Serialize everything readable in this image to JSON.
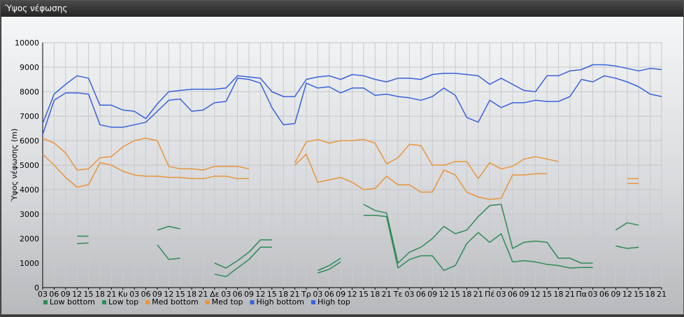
{
  "window": {
    "title": "Ύψος νέφωσης"
  },
  "chart_data": {
    "type": "line",
    "title": "",
    "ylabel": "Ύψος νέφωσης (m)",
    "ylim": [
      0,
      10000
    ],
    "yticks": [
      0,
      1000,
      2000,
      3000,
      4000,
      5000,
      6000,
      7000,
      8000,
      9000,
      10000
    ],
    "grid": true,
    "legend": "bottom-left",
    "x": [
      "03",
      "06",
      "09",
      "12",
      "15",
      "18",
      "21",
      "Κυ",
      "03",
      "06",
      "09",
      "12",
      "15",
      "18",
      "21",
      "Δε",
      "03",
      "06",
      "09",
      "12",
      "15",
      "18",
      "21",
      "Τρ",
      "03",
      "06",
      "09",
      "12",
      "15",
      "18",
      "21",
      "Τε",
      "03",
      "06",
      "09",
      "12",
      "15",
      "18",
      "21",
      "Πέ",
      "03",
      "06",
      "09",
      "12",
      "15",
      "18",
      "21",
      "Πα",
      "03",
      "06",
      "09",
      "12",
      "15",
      "18",
      "21"
    ],
    "series": [
      {
        "name": "Low bottom",
        "color": "#2e8b57",
        "values": [
          null,
          null,
          null,
          1800,
          1820,
          null,
          null,
          null,
          null,
          null,
          1750,
          1150,
          1200,
          null,
          null,
          550,
          450,
          800,
          1150,
          1650,
          1650,
          null,
          null,
          null,
          600,
          750,
          1050,
          null,
          2950,
          2950,
          2900,
          800,
          1150,
          1300,
          1300,
          700,
          900,
          1800,
          2250,
          1850,
          2200,
          1050,
          1100,
          1050,
          950,
          900,
          800,
          820,
          820,
          null,
          1700,
          1600,
          1650,
          null,
          null
        ]
      },
      {
        "name": "Low top",
        "color": "#2e8b57",
        "values": [
          null,
          null,
          null,
          2100,
          2100,
          null,
          null,
          null,
          null,
          null,
          2350,
          2500,
          2400,
          null,
          null,
          1000,
          800,
          1100,
          1450,
          1950,
          1950,
          null,
          null,
          null,
          700,
          900,
          1200,
          null,
          3400,
          3150,
          3050,
          1000,
          1450,
          1650,
          2000,
          2500,
          2200,
          2350,
          2900,
          3350,
          3400,
          1600,
          1850,
          1900,
          1850,
          1200,
          1200,
          1000,
          1000,
          null,
          2350,
          2650,
          2550,
          null,
          null
        ]
      },
      {
        "name": "Med bottom",
        "color": "#e8953c",
        "values": [
          5450,
          5000,
          4500,
          4100,
          4200,
          5100,
          5000,
          4750,
          4600,
          4550,
          4550,
          4500,
          4500,
          4450,
          4450,
          4550,
          4550,
          4450,
          4450,
          null,
          null,
          null,
          5000,
          5450,
          4300,
          4400,
          4500,
          4300,
          4000,
          4050,
          4550,
          4200,
          4200,
          3900,
          3900,
          4800,
          4600,
          3900,
          3700,
          3600,
          3650,
          4600,
          4600,
          4650,
          4650,
          null,
          null,
          null,
          null,
          null,
          null,
          4250,
          4250,
          null,
          null
        ]
      },
      {
        "name": "Med top",
        "color": "#e8953c",
        "values": [
          6100,
          5900,
          5500,
          4800,
          4850,
          5300,
          5350,
          5750,
          6000,
          6100,
          6000,
          4950,
          4850,
          4850,
          4800,
          4950,
          4950,
          4950,
          4850,
          null,
          null,
          null,
          5100,
          5950,
          6050,
          5900,
          6000,
          6000,
          6050,
          5900,
          5050,
          5300,
          5850,
          5800,
          5000,
          5000,
          5150,
          5150,
          4450,
          5100,
          4850,
          4950,
          5250,
          5350,
          5250,
          5150,
          null,
          null,
          null,
          null,
          null,
          4450,
          4450,
          null,
          null
        ]
      },
      {
        "name": "High bottom",
        "color": "#3a62d8",
        "values": [
          6250,
          7650,
          7950,
          7950,
          7900,
          6650,
          6550,
          6550,
          6650,
          6750,
          7200,
          7650,
          7700,
          7200,
          7250,
          7550,
          7600,
          8550,
          8500,
          8350,
          7350,
          6650,
          6700,
          8350,
          8150,
          8200,
          7950,
          8150,
          8150,
          7850,
          7900,
          7800,
          7750,
          7650,
          7800,
          8150,
          7850,
          6950,
          6750,
          7650,
          7350,
          7550,
          7550,
          7650,
          7600,
          7600,
          7800,
          8500,
          8400,
          8650,
          8550,
          8400,
          8200,
          7900,
          7800
        ]
      },
      {
        "name": "High top",
        "color": "#3a62d8",
        "values": [
          6700,
          7900,
          8300,
          8650,
          8550,
          7450,
          7450,
          7250,
          7200,
          6900,
          7500,
          8000,
          8050,
          8100,
          8100,
          8100,
          8150,
          8650,
          8600,
          8550,
          8000,
          7800,
          7800,
          8500,
          8600,
          8650,
          8500,
          8700,
          8650,
          8500,
          8400,
          8550,
          8550,
          8500,
          8700,
          8750,
          8750,
          8700,
          8650,
          8300,
          8550,
          8300,
          8050,
          8000,
          8650,
          8650,
          8850,
          8900,
          9100,
          9100,
          9050,
          8950,
          8850,
          8950,
          8900
        ]
      }
    ]
  }
}
